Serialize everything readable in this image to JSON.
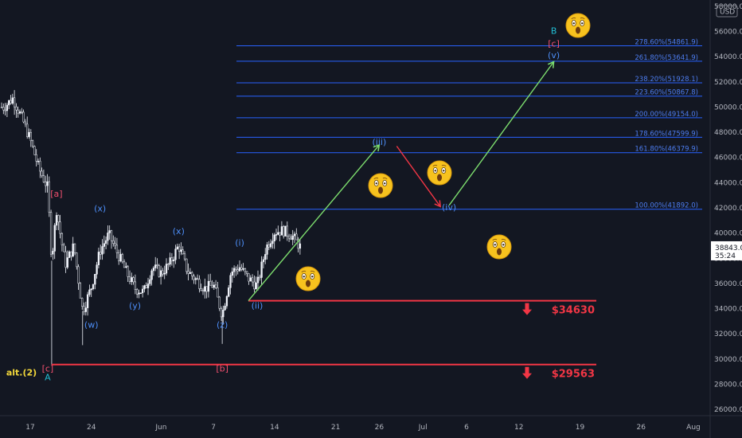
{
  "colors": {
    "background": "#131722",
    "candle": "#f0f3fa",
    "fib_line": "#2962ff",
    "fib_text": "#4d7df0",
    "support_line": "#f23645",
    "support_text": "#f23645",
    "arrow_up": "#7dde6e",
    "arrow_down": "#f23645",
    "wave_blue": "#4d8ef7",
    "wave_red": "#f04f6e",
    "wave_cyan": "#22bfd4",
    "alt_label": "#f2d73a",
    "axis_text": "#b2b5be"
  },
  "chart_data": {
    "type": "candlestick",
    "title": "",
    "xlabel": "",
    "ylabel": "",
    "currency_label": "USD",
    "y_range": [
      25500,
      58500
    ],
    "y_ticks": [
      26000,
      28000,
      30000,
      32000,
      34000,
      36000,
      38000,
      40000,
      42000,
      44000,
      46000,
      48000,
      50000,
      52000,
      54000,
      56000,
      58000
    ],
    "x_ticks": [
      "17",
      "24",
      "Jun",
      "7",
      "14",
      "21",
      "26",
      "Jul",
      "6",
      "12",
      "19",
      "26",
      "Aug"
    ],
    "current_price": "38843.0",
    "countdown": "35:24",
    "price_path": [
      [
        "May 14",
        50000
      ],
      [
        "May 15",
        50700
      ],
      [
        "May 16",
        49200
      ],
      [
        "May 17",
        47400
      ],
      [
        "May 18",
        45100
      ],
      [
        "May 19",
        43600
      ],
      [
        "May 19b",
        37800
      ],
      [
        "May 20",
        41900
      ],
      [
        "May 21",
        37500
      ],
      [
        "May 22",
        39000
      ],
      [
        "May 23",
        33800
      ],
      [
        "May 24",
        35700
      ],
      [
        "May 25",
        38600
      ],
      [
        "May 26",
        39900
      ],
      [
        "May 27",
        38400
      ],
      [
        "May 28",
        36900
      ],
      [
        "May 29",
        35600
      ],
      [
        "May 30",
        35300
      ],
      [
        "May 31",
        37300
      ],
      [
        "Jun 1",
        36800
      ],
      [
        "Jun 2",
        37600
      ],
      [
        "Jun 3",
        39000
      ],
      [
        "Jun 4",
        37000
      ],
      [
        "Jun 5",
        36300
      ],
      [
        "Jun 6",
        35600
      ],
      [
        "Jun 7",
        35900
      ],
      [
        "Jun 8",
        33500
      ],
      [
        "Jun 9",
        36900
      ],
      [
        "Jun 10",
        37300
      ],
      [
        "Jun 11",
        36400
      ],
      [
        "Jun 12",
        35800
      ],
      [
        "Jun 13",
        38800
      ],
      [
        "Jun 14",
        40100
      ],
      [
        "Jun 15",
        40200
      ],
      [
        "Jun 16",
        39800
      ],
      [
        "Jun 17",
        38843
      ]
    ],
    "fib_levels": [
      {
        "label": "278.60%(54861.9)",
        "value": 54861.9
      },
      {
        "label": "261.80%(53641.9)",
        "value": 53641.9
      },
      {
        "label": "238.20%(51928.1)",
        "value": 51928.1
      },
      {
        "label": "223.60%(50867.8)",
        "value": 50867.8
      },
      {
        "label": "200.00%(49154.0)",
        "value": 49154.0
      },
      {
        "label": "178.60%(47599.9)",
        "value": 47599.9
      },
      {
        "label": "161.80%(46379.9)",
        "value": 46379.9
      },
      {
        "label": "100.00%(41892.0)",
        "value": 41892.0
      }
    ],
    "support_levels": [
      {
        "label": "$34630",
        "value": 34630
      },
      {
        "label": "$29563",
        "value": 29563
      }
    ],
    "wave_labels": [
      {
        "text": "[a]",
        "color": "red",
        "date": "May 20",
        "price": 42900
      },
      {
        "text": "(x)",
        "color": "blue",
        "date": "May 25",
        "price": 41700
      },
      {
        "text": "(w)",
        "color": "blue",
        "date": "May 24",
        "price": 32500
      },
      {
        "text": "(y)",
        "color": "blue",
        "date": "May 29",
        "price": 34000
      },
      {
        "text": "(x)",
        "color": "blue",
        "date": "Jun 3",
        "price": 39900
      },
      {
        "text": "(z)",
        "color": "blue",
        "date": "Jun 8",
        "price": 32500
      },
      {
        "text": "[b]",
        "color": "red",
        "date": "Jun 8",
        "price": 29000
      },
      {
        "text": "(i)",
        "color": "blue",
        "date": "Jun 10",
        "price": 39000
      },
      {
        "text": "(ii)",
        "color": "blue",
        "date": "Jun 12",
        "price": 34000
      },
      {
        "text": "(iii)",
        "color": "blue",
        "date": "Jun 26",
        "price": 47000
      },
      {
        "text": "(iv)",
        "color": "blue",
        "date": "Jul 4",
        "price": 41800
      },
      {
        "text": "(v)",
        "color": "blue",
        "date": "Jul 16",
        "price": 53900
      },
      {
        "text": "[c]",
        "color": "red",
        "date": "Jul 16",
        "price": 54800
      },
      {
        "text": "B",
        "color": "cyan",
        "date": "Jul 16",
        "price": 55800
      },
      {
        "text": "[c]",
        "color": "red",
        "date": "May 19",
        "price": 29000
      },
      {
        "text": "A",
        "color": "cyan",
        "date": "May 19",
        "price": 28300
      },
      {
        "text": "alt.(2)",
        "color": "yellow",
        "date": "May 16",
        "price": 28700
      }
    ],
    "projection_arrows": [
      {
        "from": [
          "Jun 11",
          34630
        ],
        "to": [
          "Jun 26",
          47000
        ],
        "direction": "up"
      },
      {
        "from": [
          "Jun 28",
          46900
        ],
        "to": [
          "Jul 3",
          42100
        ],
        "direction": "down"
      },
      {
        "from": [
          "Jul 4",
          42200
        ],
        "to": [
          "Jul 16",
          53600
        ],
        "direction": "up"
      }
    ]
  }
}
